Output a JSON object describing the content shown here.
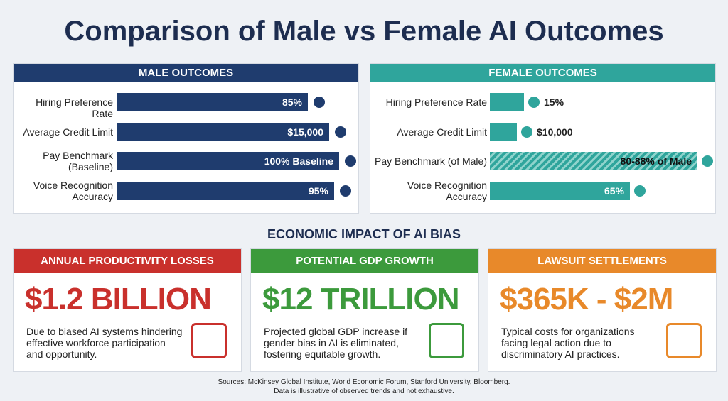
{
  "title": "Comparison of Male vs Female AI Outcomes",
  "male_outcomes": {
    "heading": "MALE OUTCOMES",
    "rows": [
      {
        "label": "Hiring Preference Rate",
        "value": "85%"
      },
      {
        "label": "Average Credit Limit",
        "value": "$15,000"
      },
      {
        "label": "Pay Benchmark (Baseline)",
        "value": "100% Baseline"
      },
      {
        "label": "Voice Recognition Accuracy",
        "value": "95%"
      }
    ]
  },
  "female_outcomes": {
    "heading": "FEMALE OUTCOMES",
    "rows": [
      {
        "label": "Hiring Preference Rate",
        "value": "15%"
      },
      {
        "label": "Average Credit Limit",
        "value": "$10,000"
      },
      {
        "label": "Pay Benchmark (of Male)",
        "value": "80-88% of Male"
      },
      {
        "label": "Voice Recognition Accuracy",
        "value": "65%"
      }
    ]
  },
  "impact": {
    "heading": "ECONOMIC IMPACT OF AI BIAS",
    "cards": [
      {
        "heading": "ANNUAL PRODUCTIVITY LOSSES",
        "figure": "$1.2 BILLION",
        "description": "Due to biased AI systems hindering effective workforce participation and opportunity."
      },
      {
        "heading": "POTENTIAL GDP GROWTH",
        "figure": "$12 TRILLION",
        "description": "Projected global GDP increase if gender bias in AI is eliminated, fostering equitable growth."
      },
      {
        "heading": "LAWSUIT SETTLEMENTS",
        "figure": "$365K - $2M",
        "description": "Typical costs for organizations facing legal action due to discriminatory AI practices."
      }
    ]
  },
  "sources": [
    "Sources: McKinsey Global Institute, World Economic Forum, Stanford University, Bloomberg.",
    "Data is illustrative of observed trends and not exhaustive."
  ]
}
